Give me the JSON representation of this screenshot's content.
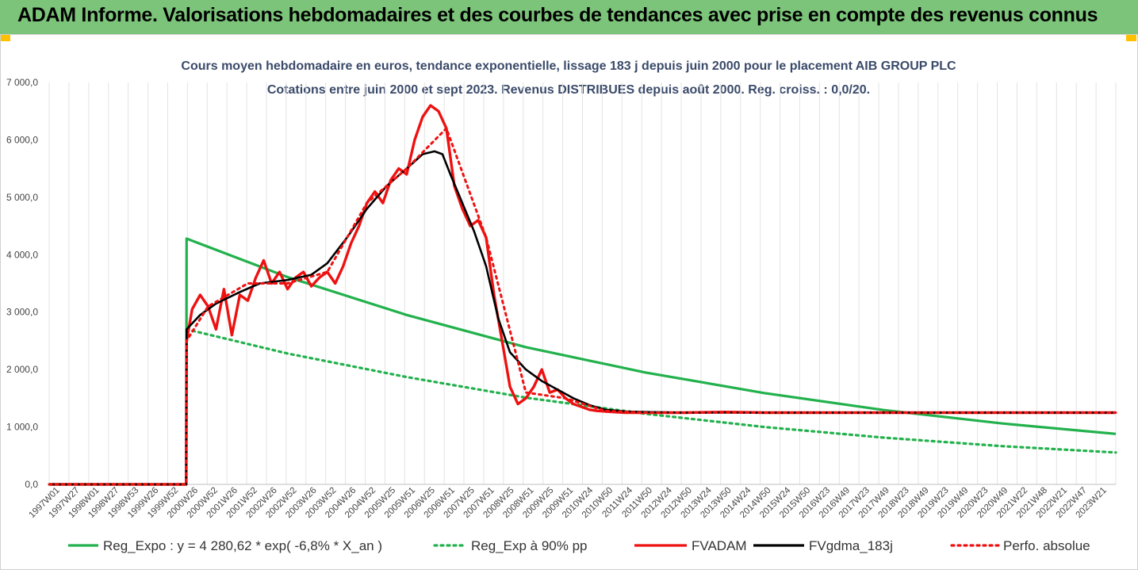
{
  "header": {
    "title": "ADAM Informe. Valorisations hebdomadaires et des courbes de tendances avec prise en compte des revenus connus"
  },
  "colors": {
    "header_bg": "#7cc47a",
    "corner": "#ffc000",
    "green": "#22b14c",
    "red": "#ee1111",
    "black": "#000000",
    "title": "#3a4a6a"
  },
  "chart_data": {
    "type": "line",
    "title": "Cours moyen hebdomadaire en euros, tendance exponentielle, lissage 183 j depuis juin 2000 pour le placement AIB GROUP PLC",
    "subtitle": "Cotations entre juin 2000 et sept 2023. Revenus DISTRIBUES depuis août 2000. Reg. croiss. : 0,0/20.",
    "ylim": [
      0,
      7000
    ],
    "yticks": [
      "0,0",
      "1 000,0",
      "2 000,0",
      "3 000,0",
      "4 000,0",
      "5 000,0",
      "6 000,0",
      "7 000,0"
    ],
    "xlim": [
      1997.0,
      2023.85
    ],
    "x_unit": "year",
    "categories": [
      "1997W01",
      "1997W27",
      "1998W01",
      "1998W27",
      "1998W53",
      "1999W26",
      "1999W52",
      "2000W26",
      "2000W52",
      "2001W26",
      "2001W52",
      "2002W26",
      "2002W52",
      "2003W26",
      "2003W52",
      "2004W26",
      "2004W52",
      "2005W25",
      "2005W51",
      "2006W25",
      "2006W51",
      "2007W25",
      "2007W51",
      "2008W25",
      "2008W51",
      "2009W25",
      "2009W51",
      "2010W24",
      "2010W50",
      "2011W24",
      "2011W50",
      "2012W24",
      "2012W50",
      "2013W24",
      "2013W50",
      "2014W24",
      "2014W50",
      "2015W24",
      "2015W50",
      "2016W23",
      "2016W49",
      "2017W23",
      "2017W49",
      "2018W23",
      "2018W49",
      "2019W23",
      "2019W49",
      "2020W23",
      "2020W49",
      "2021W22",
      "2021W48",
      "2022W21",
      "2022W47",
      "2023W21"
    ],
    "series": [
      {
        "name": "Reg_Expo : y = 4 280,62 * exp( -6,8% * X_an )",
        "color": "#22b14c",
        "style": "solid",
        "x": [
          1997.0,
          2000.45,
          2000.46,
          2003.0,
          2006.0,
          2009.0,
          2012.0,
          2015.0,
          2018.0,
          2021.0,
          2023.85
        ],
        "y": [
          0,
          0,
          4280,
          3610,
          2950,
          2390,
          1950,
          1590,
          1295,
          1060,
          880
        ]
      },
      {
        "name": "Reg_Exp à 90% pp",
        "color": "#22b14c",
        "style": "dotted",
        "x": [
          1997.0,
          2000.45,
          2000.46,
          2003.0,
          2006.0,
          2009.0,
          2012.0,
          2015.0,
          2018.0,
          2021.0,
          2023.85
        ],
        "y": [
          0,
          0,
          2700,
          2280,
          1870,
          1510,
          1230,
          1000,
          815,
          665,
          555
        ]
      },
      {
        "name": "FVADAM",
        "color": "#ee1111",
        "style": "solid",
        "x": [
          1997.0,
          2000.45,
          2000.46,
          2000.6,
          2000.8,
          2001.0,
          2001.2,
          2001.4,
          2001.6,
          2001.8,
          2002.0,
          2002.2,
          2002.4,
          2002.6,
          2002.8,
          2003.0,
          2003.2,
          2003.4,
          2003.6,
          2003.8,
          2004.0,
          2004.2,
          2004.4,
          2004.6,
          2004.8,
          2005.0,
          2005.2,
          2005.4,
          2005.6,
          2005.8,
          2006.0,
          2006.2,
          2006.4,
          2006.6,
          2006.8,
          2007.0,
          2007.2,
          2007.4,
          2007.6,
          2007.8,
          2008.0,
          2008.2,
          2008.4,
          2008.6,
          2008.8,
          2009.0,
          2009.2,
          2009.4,
          2009.6,
          2009.8,
          2010.0,
          2010.2,
          2010.4,
          2010.6,
          2010.8,
          2011.0,
          2011.5,
          2012.0,
          2013.0,
          2014.0,
          2015.0,
          2016.0,
          2017.0,
          2018.0,
          2019.0,
          2020.0,
          2021.0,
          2022.0,
          2023.0,
          2023.85
        ],
        "y": [
          0,
          0,
          2500,
          3050,
          3300,
          3100,
          2700,
          3400,
          2600,
          3300,
          3200,
          3600,
          3900,
          3500,
          3700,
          3400,
          3600,
          3700,
          3450,
          3600,
          3700,
          3500,
          3800,
          4200,
          4500,
          4900,
          5100,
          4900,
          5300,
          5500,
          5400,
          6000,
          6400,
          6600,
          6500,
          6200,
          5200,
          4800,
          4500,
          4600,
          4300,
          3300,
          2500,
          1700,
          1400,
          1500,
          1700,
          2000,
          1600,
          1650,
          1500,
          1400,
          1350,
          1300,
          1280,
          1270,
          1250,
          1250,
          1250,
          1260,
          1250,
          1250,
          1250,
          1250,
          1250,
          1250,
          1250,
          1250,
          1250,
          1250
        ]
      },
      {
        "name": "FVgdma_183j",
        "color": "#000000",
        "style": "solid",
        "x": [
          1997.0,
          2000.45,
          2000.46,
          2000.8,
          2001.2,
          2001.8,
          2002.3,
          2003.0,
          2003.6,
          2004.0,
          2004.5,
          2005.0,
          2005.5,
          2006.0,
          2006.4,
          2006.7,
          2006.9,
          2007.1,
          2007.4,
          2007.7,
          2008.0,
          2008.3,
          2008.6,
          2009.0,
          2009.4,
          2009.8,
          2010.2,
          2010.6,
          2011.0,
          2011.5,
          2012.0,
          2013.0,
          2015.0,
          2017.0,
          2019.0,
          2021.0,
          2023.85
        ],
        "y": [
          0,
          0,
          2700,
          2950,
          3150,
          3350,
          3500,
          3560,
          3650,
          3850,
          4300,
          4800,
          5200,
          5500,
          5750,
          5800,
          5750,
          5400,
          4900,
          4400,
          3800,
          2900,
          2300,
          2000,
          1800,
          1650,
          1500,
          1380,
          1300,
          1270,
          1260,
          1250,
          1250,
          1250,
          1250,
          1250,
          1250
        ]
      },
      {
        "name": "Perfo. absolue",
        "color": "#ee1111",
        "style": "dotted",
        "x": [
          1997.0,
          2000.45,
          2000.46,
          2001.0,
          2002.0,
          2003.0,
          2004.0,
          2005.0,
          2006.0,
          2007.0,
          2008.0,
          2009.0,
          2010.0,
          2011.0,
          2012.0,
          2014.0,
          2016.0,
          2018.0,
          2020.0,
          2022.0,
          2023.85
        ],
        "y": [
          0,
          0,
          2500,
          3100,
          3500,
          3500,
          3700,
          4900,
          5500,
          6200,
          4300,
          1600,
          1500,
          1280,
          1250,
          1250,
          1250,
          1250,
          1250,
          1250,
          1250
        ]
      }
    ],
    "legend_position": "bottom",
    "grid": "vertical"
  }
}
